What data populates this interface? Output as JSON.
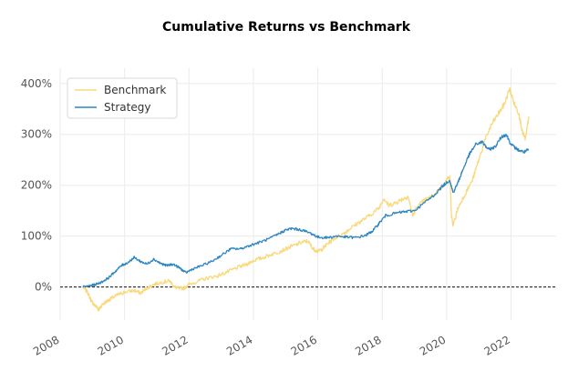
{
  "chart_data": {
    "type": "line",
    "title": "Cumulative Returns vs Benchmark",
    "xlabel": "",
    "ylabel": "",
    "xlim": [
      2008.0,
      2023.4
    ],
    "ylim": [
      -0.65,
      4.3
    ],
    "x_ticks": [
      {
        "value": 2008,
        "label": "2008"
      },
      {
        "value": 2010,
        "label": "2010"
      },
      {
        "value": 2012,
        "label": "2012"
      },
      {
        "value": 2014,
        "label": "2014"
      },
      {
        "value": 2016,
        "label": "2016"
      },
      {
        "value": 2018,
        "label": "2018"
      },
      {
        "value": 2020,
        "label": "2020"
      },
      {
        "value": 2022,
        "label": "2022"
      }
    ],
    "y_ticks": [
      {
        "value": 0,
        "label": "0%"
      },
      {
        "value": 1,
        "label": "100%"
      },
      {
        "value": 2,
        "label": "200%"
      },
      {
        "value": 3,
        "label": "300%"
      },
      {
        "value": 4,
        "label": "400%"
      }
    ],
    "grid": true,
    "legend_position": "top-left",
    "zero_line": true,
    "series": [
      {
        "name": "Benchmark",
        "color": "#f9d97c",
        "points": [
          [
            2008.7,
            0.0
          ],
          [
            2008.85,
            -0.1
          ],
          [
            2008.95,
            -0.25
          ],
          [
            2009.05,
            -0.35
          ],
          [
            2009.15,
            -0.4
          ],
          [
            2009.2,
            -0.45
          ],
          [
            2009.3,
            -0.35
          ],
          [
            2009.45,
            -0.28
          ],
          [
            2009.6,
            -0.22
          ],
          [
            2009.8,
            -0.15
          ],
          [
            2010.0,
            -0.1
          ],
          [
            2010.3,
            -0.07
          ],
          [
            2010.5,
            -0.12
          ],
          [
            2010.7,
            -0.02
          ],
          [
            2010.9,
            0.05
          ],
          [
            2011.2,
            0.1
          ],
          [
            2011.4,
            0.12
          ],
          [
            2011.55,
            0.0
          ],
          [
            2011.7,
            -0.03
          ],
          [
            2011.85,
            -0.02
          ],
          [
            2012.0,
            0.05
          ],
          [
            2012.3,
            0.12
          ],
          [
            2012.6,
            0.18
          ],
          [
            2012.9,
            0.22
          ],
          [
            2013.2,
            0.3
          ],
          [
            2013.5,
            0.38
          ],
          [
            2013.8,
            0.45
          ],
          [
            2014.0,
            0.52
          ],
          [
            2014.3,
            0.58
          ],
          [
            2014.6,
            0.65
          ],
          [
            2014.9,
            0.72
          ],
          [
            2015.2,
            0.8
          ],
          [
            2015.5,
            0.88
          ],
          [
            2015.7,
            0.9
          ],
          [
            2015.85,
            0.75
          ],
          [
            2016.0,
            0.7
          ],
          [
            2016.15,
            0.75
          ],
          [
            2016.3,
            0.85
          ],
          [
            2016.5,
            0.95
          ],
          [
            2016.8,
            1.05
          ],
          [
            2017.0,
            1.15
          ],
          [
            2017.3,
            1.28
          ],
          [
            2017.6,
            1.4
          ],
          [
            2017.9,
            1.55
          ],
          [
            2018.05,
            1.75
          ],
          [
            2018.2,
            1.6
          ],
          [
            2018.4,
            1.65
          ],
          [
            2018.6,
            1.72
          ],
          [
            2018.8,
            1.78
          ],
          [
            2018.95,
            1.4
          ],
          [
            2019.05,
            1.55
          ],
          [
            2019.3,
            1.7
          ],
          [
            2019.6,
            1.8
          ],
          [
            2019.9,
            2.0
          ],
          [
            2020.1,
            2.2
          ],
          [
            2020.15,
            1.4
          ],
          [
            2020.2,
            1.2
          ],
          [
            2020.35,
            1.55
          ],
          [
            2020.55,
            1.8
          ],
          [
            2020.8,
            2.1
          ],
          [
            2021.0,
            2.5
          ],
          [
            2021.2,
            2.9
          ],
          [
            2021.4,
            3.2
          ],
          [
            2021.6,
            3.4
          ],
          [
            2021.8,
            3.6
          ],
          [
            2021.95,
            3.9
          ],
          [
            2022.1,
            3.6
          ],
          [
            2022.25,
            3.4
          ],
          [
            2022.35,
            3.05
          ],
          [
            2022.45,
            2.9
          ],
          [
            2022.55,
            3.35
          ]
        ]
      },
      {
        "name": "Strategy",
        "color": "#2e86c1",
        "points": [
          [
            2008.7,
            0.0
          ],
          [
            2008.9,
            0.02
          ],
          [
            2009.1,
            0.05
          ],
          [
            2009.3,
            0.1
          ],
          [
            2009.5,
            0.18
          ],
          [
            2009.7,
            0.3
          ],
          [
            2009.9,
            0.42
          ],
          [
            2010.1,
            0.48
          ],
          [
            2010.3,
            0.58
          ],
          [
            2010.5,
            0.5
          ],
          [
            2010.7,
            0.45
          ],
          [
            2010.9,
            0.55
          ],
          [
            2011.1,
            0.47
          ],
          [
            2011.3,
            0.42
          ],
          [
            2011.5,
            0.45
          ],
          [
            2011.7,
            0.38
          ],
          [
            2011.9,
            0.28
          ],
          [
            2012.1,
            0.35
          ],
          [
            2012.4,
            0.42
          ],
          [
            2012.7,
            0.5
          ],
          [
            2013.0,
            0.62
          ],
          [
            2013.3,
            0.75
          ],
          [
            2013.6,
            0.75
          ],
          [
            2013.9,
            0.82
          ],
          [
            2014.2,
            0.88
          ],
          [
            2014.5,
            0.95
          ],
          [
            2014.8,
            1.05
          ],
          [
            2015.0,
            1.12
          ],
          [
            2015.2,
            1.15
          ],
          [
            2015.5,
            1.12
          ],
          [
            2015.8,
            1.05
          ],
          [
            2016.0,
            0.98
          ],
          [
            2016.3,
            0.97
          ],
          [
            2016.6,
            1.0
          ],
          [
            2016.9,
            0.98
          ],
          [
            2017.2,
            0.97
          ],
          [
            2017.5,
            1.02
          ],
          [
            2017.7,
            1.1
          ],
          [
            2017.9,
            1.25
          ],
          [
            2018.1,
            1.4
          ],
          [
            2018.4,
            1.45
          ],
          [
            2018.7,
            1.48
          ],
          [
            2019.0,
            1.5
          ],
          [
            2019.3,
            1.65
          ],
          [
            2019.6,
            1.8
          ],
          [
            2019.9,
            2.0
          ],
          [
            2020.1,
            2.1
          ],
          [
            2020.2,
            1.85
          ],
          [
            2020.35,
            2.05
          ],
          [
            2020.5,
            2.3
          ],
          [
            2020.7,
            2.6
          ],
          [
            2020.9,
            2.8
          ],
          [
            2021.1,
            2.85
          ],
          [
            2021.3,
            2.7
          ],
          [
            2021.5,
            2.75
          ],
          [
            2021.7,
            2.95
          ],
          [
            2021.85,
            3.0
          ],
          [
            2022.0,
            2.8
          ],
          [
            2022.2,
            2.7
          ],
          [
            2022.4,
            2.65
          ],
          [
            2022.55,
            2.7
          ]
        ]
      }
    ]
  }
}
